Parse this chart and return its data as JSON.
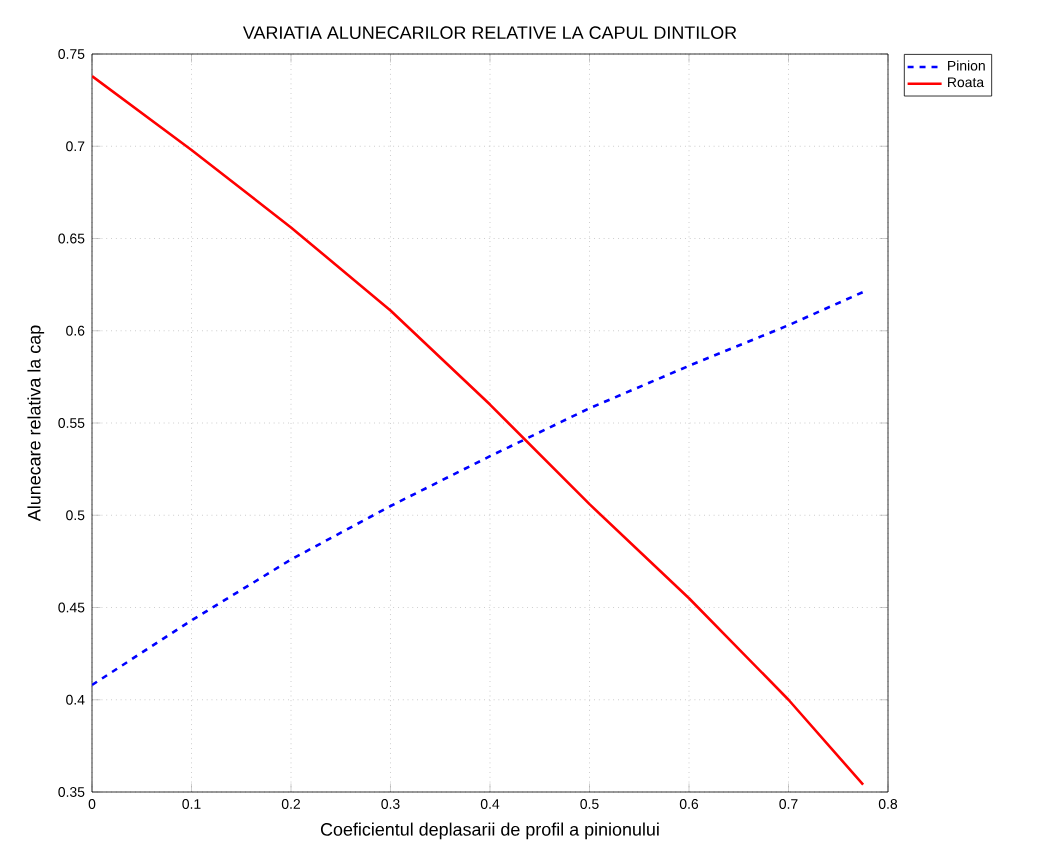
{
  "chart_data": {
    "type": "line",
    "title": "VARIATIA ALUNECARILOR RELATIVE LA CAPUL DINTILOR",
    "xlabel": "Coeficientul deplasarii de profil a pinionului",
    "ylabel": "Alunecare relativa la cap",
    "x": [
      0,
      0.1,
      0.2,
      0.3,
      0.4,
      0.5,
      0.6,
      0.7,
      0.775
    ],
    "series": [
      {
        "name": "Pinion",
        "color": "#0000ff",
        "line_style": "dashed",
        "values": [
          0.408,
          0.443,
          0.476,
          0.505,
          0.532,
          0.558,
          0.581,
          0.603,
          0.621
        ]
      },
      {
        "name": "Roata",
        "color": "#ff0000",
        "line_style": "solid",
        "values": [
          0.738,
          0.698,
          0.656,
          0.611,
          0.56,
          0.506,
          0.455,
          0.4,
          0.354
        ]
      }
    ],
    "xlim": [
      0,
      0.8
    ],
    "ylim": [
      0.35,
      0.75
    ],
    "xticks": [
      0,
      0.1,
      0.2,
      0.3,
      0.4,
      0.5,
      0.6,
      0.7,
      0.8
    ],
    "yticks": [
      0.35,
      0.4,
      0.45,
      0.5,
      0.55,
      0.6,
      0.65,
      0.7,
      0.75
    ],
    "grid": true,
    "legend": "top right",
    "marker": "none"
  }
}
